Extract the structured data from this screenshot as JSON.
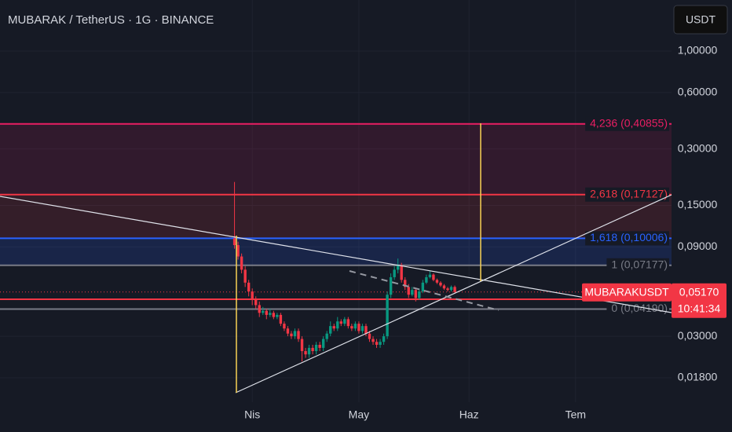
{
  "header": {
    "title": "MUBARAK / TetherUS · 1G · BINANCE",
    "currency": "USDT"
  },
  "chart_data": {
    "type": "candlestick",
    "log_scale": true,
    "grid": true,
    "up_color": "#089981",
    "down_color": "#f23645",
    "xlim": [
      -40,
      149
    ],
    "xticks": [
      {
        "value": 31,
        "label": "Nis"
      },
      {
        "value": 61,
        "label": "May"
      },
      {
        "value": 92,
        "label": "Haz"
      },
      {
        "value": 122,
        "label": "Tem"
      }
    ],
    "ylim": [
      0.01334,
      1.874
    ],
    "yticks": [
      {
        "value": 1,
        "label": "1,00000"
      },
      {
        "value": 0.6,
        "label": "0,60000"
      },
      {
        "value": 0.3,
        "label": "0,30000"
      },
      {
        "value": 0.15,
        "label": "0,15000"
      },
      {
        "value": 0.09,
        "label": "0,09000"
      },
      {
        "value": 0.03,
        "label": "0,03000"
      },
      {
        "value": 0.018,
        "label": "0,01800"
      }
    ],
    "x": [
      26,
      27,
      28,
      29,
      30,
      31,
      32,
      33,
      34,
      35,
      36,
      37,
      38,
      39,
      40,
      41,
      42,
      43,
      44,
      45,
      46,
      47,
      48,
      49,
      50,
      51,
      52,
      53,
      54,
      55,
      56,
      57,
      58,
      59,
      60,
      61,
      62,
      63,
      64,
      65,
      66,
      67,
      68,
      69,
      70,
      71,
      72,
      73,
      74,
      75,
      76,
      77,
      78,
      79,
      80,
      81,
      82,
      83,
      84,
      85,
      86,
      87,
      88
    ],
    "open": [
      0.1,
      0.092,
      0.08,
      0.068,
      0.058,
      0.052,
      0.047,
      0.044,
      0.04,
      0.041,
      0.039,
      0.04,
      0.038,
      0.039,
      0.035,
      0.033,
      0.031,
      0.03,
      0.032,
      0.029,
      0.025,
      0.024,
      0.026,
      0.025,
      0.027,
      0.026,
      0.029,
      0.031,
      0.034,
      0.033,
      0.036,
      0.035,
      0.037,
      0.034,
      0.033,
      0.035,
      0.032,
      0.034,
      0.031,
      0.029,
      0.028,
      0.027,
      0.028,
      0.03,
      0.05,
      0.062,
      0.068,
      0.072,
      0.06,
      0.055,
      0.05,
      0.053,
      0.048,
      0.052,
      0.058,
      0.062,
      0.064,
      0.06,
      0.058,
      0.056,
      0.054,
      0.053,
      0.055
    ],
    "high": [
      0.2,
      0.096,
      0.083,
      0.071,
      0.06,
      0.054,
      0.049,
      0.046,
      0.043,
      0.042,
      0.042,
      0.041,
      0.04,
      0.04,
      0.036,
      0.034,
      0.032,
      0.033,
      0.033,
      0.03,
      0.026,
      0.027,
      0.027,
      0.028,
      0.028,
      0.03,
      0.032,
      0.036,
      0.035,
      0.038,
      0.037,
      0.038,
      0.038,
      0.035,
      0.036,
      0.036,
      0.035,
      0.035,
      0.032,
      0.03,
      0.029,
      0.029,
      0.031,
      0.052,
      0.065,
      0.071,
      0.078,
      0.074,
      0.062,
      0.057,
      0.055,
      0.054,
      0.054,
      0.06,
      0.064,
      0.067,
      0.065,
      0.061,
      0.059,
      0.057,
      0.055,
      0.056,
      0.056
    ],
    "low": [
      0.088,
      0.077,
      0.065,
      0.055,
      0.049,
      0.044,
      0.042,
      0.038,
      0.039,
      0.037,
      0.038,
      0.037,
      0.037,
      0.034,
      0.032,
      0.03,
      0.029,
      0.029,
      0.028,
      0.022,
      0.023,
      0.023,
      0.024,
      0.024,
      0.025,
      0.025,
      0.028,
      0.03,
      0.032,
      0.032,
      0.034,
      0.034,
      0.033,
      0.032,
      0.032,
      0.031,
      0.031,
      0.03,
      0.028,
      0.027,
      0.026,
      0.026,
      0.027,
      0.029,
      0.048,
      0.06,
      0.065,
      0.058,
      0.053,
      0.048,
      0.049,
      0.046,
      0.047,
      0.051,
      0.057,
      0.061,
      0.059,
      0.057,
      0.055,
      0.053,
      0.052,
      0.052,
      0.051
    ],
    "close": [
      0.092,
      0.08,
      0.068,
      0.058,
      0.052,
      0.047,
      0.044,
      0.04,
      0.041,
      0.039,
      0.04,
      0.038,
      0.039,
      0.035,
      0.033,
      0.031,
      0.03,
      0.032,
      0.029,
      0.025,
      0.024,
      0.026,
      0.025,
      0.027,
      0.026,
      0.029,
      0.031,
      0.034,
      0.033,
      0.036,
      0.035,
      0.037,
      0.034,
      0.033,
      0.035,
      0.032,
      0.034,
      0.031,
      0.029,
      0.028,
      0.027,
      0.028,
      0.03,
      0.05,
      0.062,
      0.068,
      0.072,
      0.06,
      0.055,
      0.05,
      0.053,
      0.048,
      0.052,
      0.058,
      0.062,
      0.064,
      0.06,
      0.058,
      0.056,
      0.054,
      0.053,
      0.055,
      0.0517
    ],
    "levels": [
      {
        "label": "4,236 (0,40855)",
        "value": 0.40855,
        "color": "#e91e63"
      },
      {
        "label": "2,618 (0,17127)",
        "value": 0.17127,
        "color": "#f23645"
      },
      {
        "label": "1,618 (0,10006)",
        "value": 0.10006,
        "color": "#2962ff"
      },
      {
        "label": "1 (0,07177)",
        "value": 0.07177,
        "color": "#787b86"
      },
      {
        "value": 0.0473,
        "color": "#f23645"
      },
      {
        "label": "0 (0,04190)",
        "value": 0.0419,
        "color": "#787b86"
      }
    ],
    "last_price": {
      "value": 0.0517,
      "label": "0,05170"
    },
    "symbol": "MUBARAKUSDT",
    "countdown": "10:41:34"
  }
}
